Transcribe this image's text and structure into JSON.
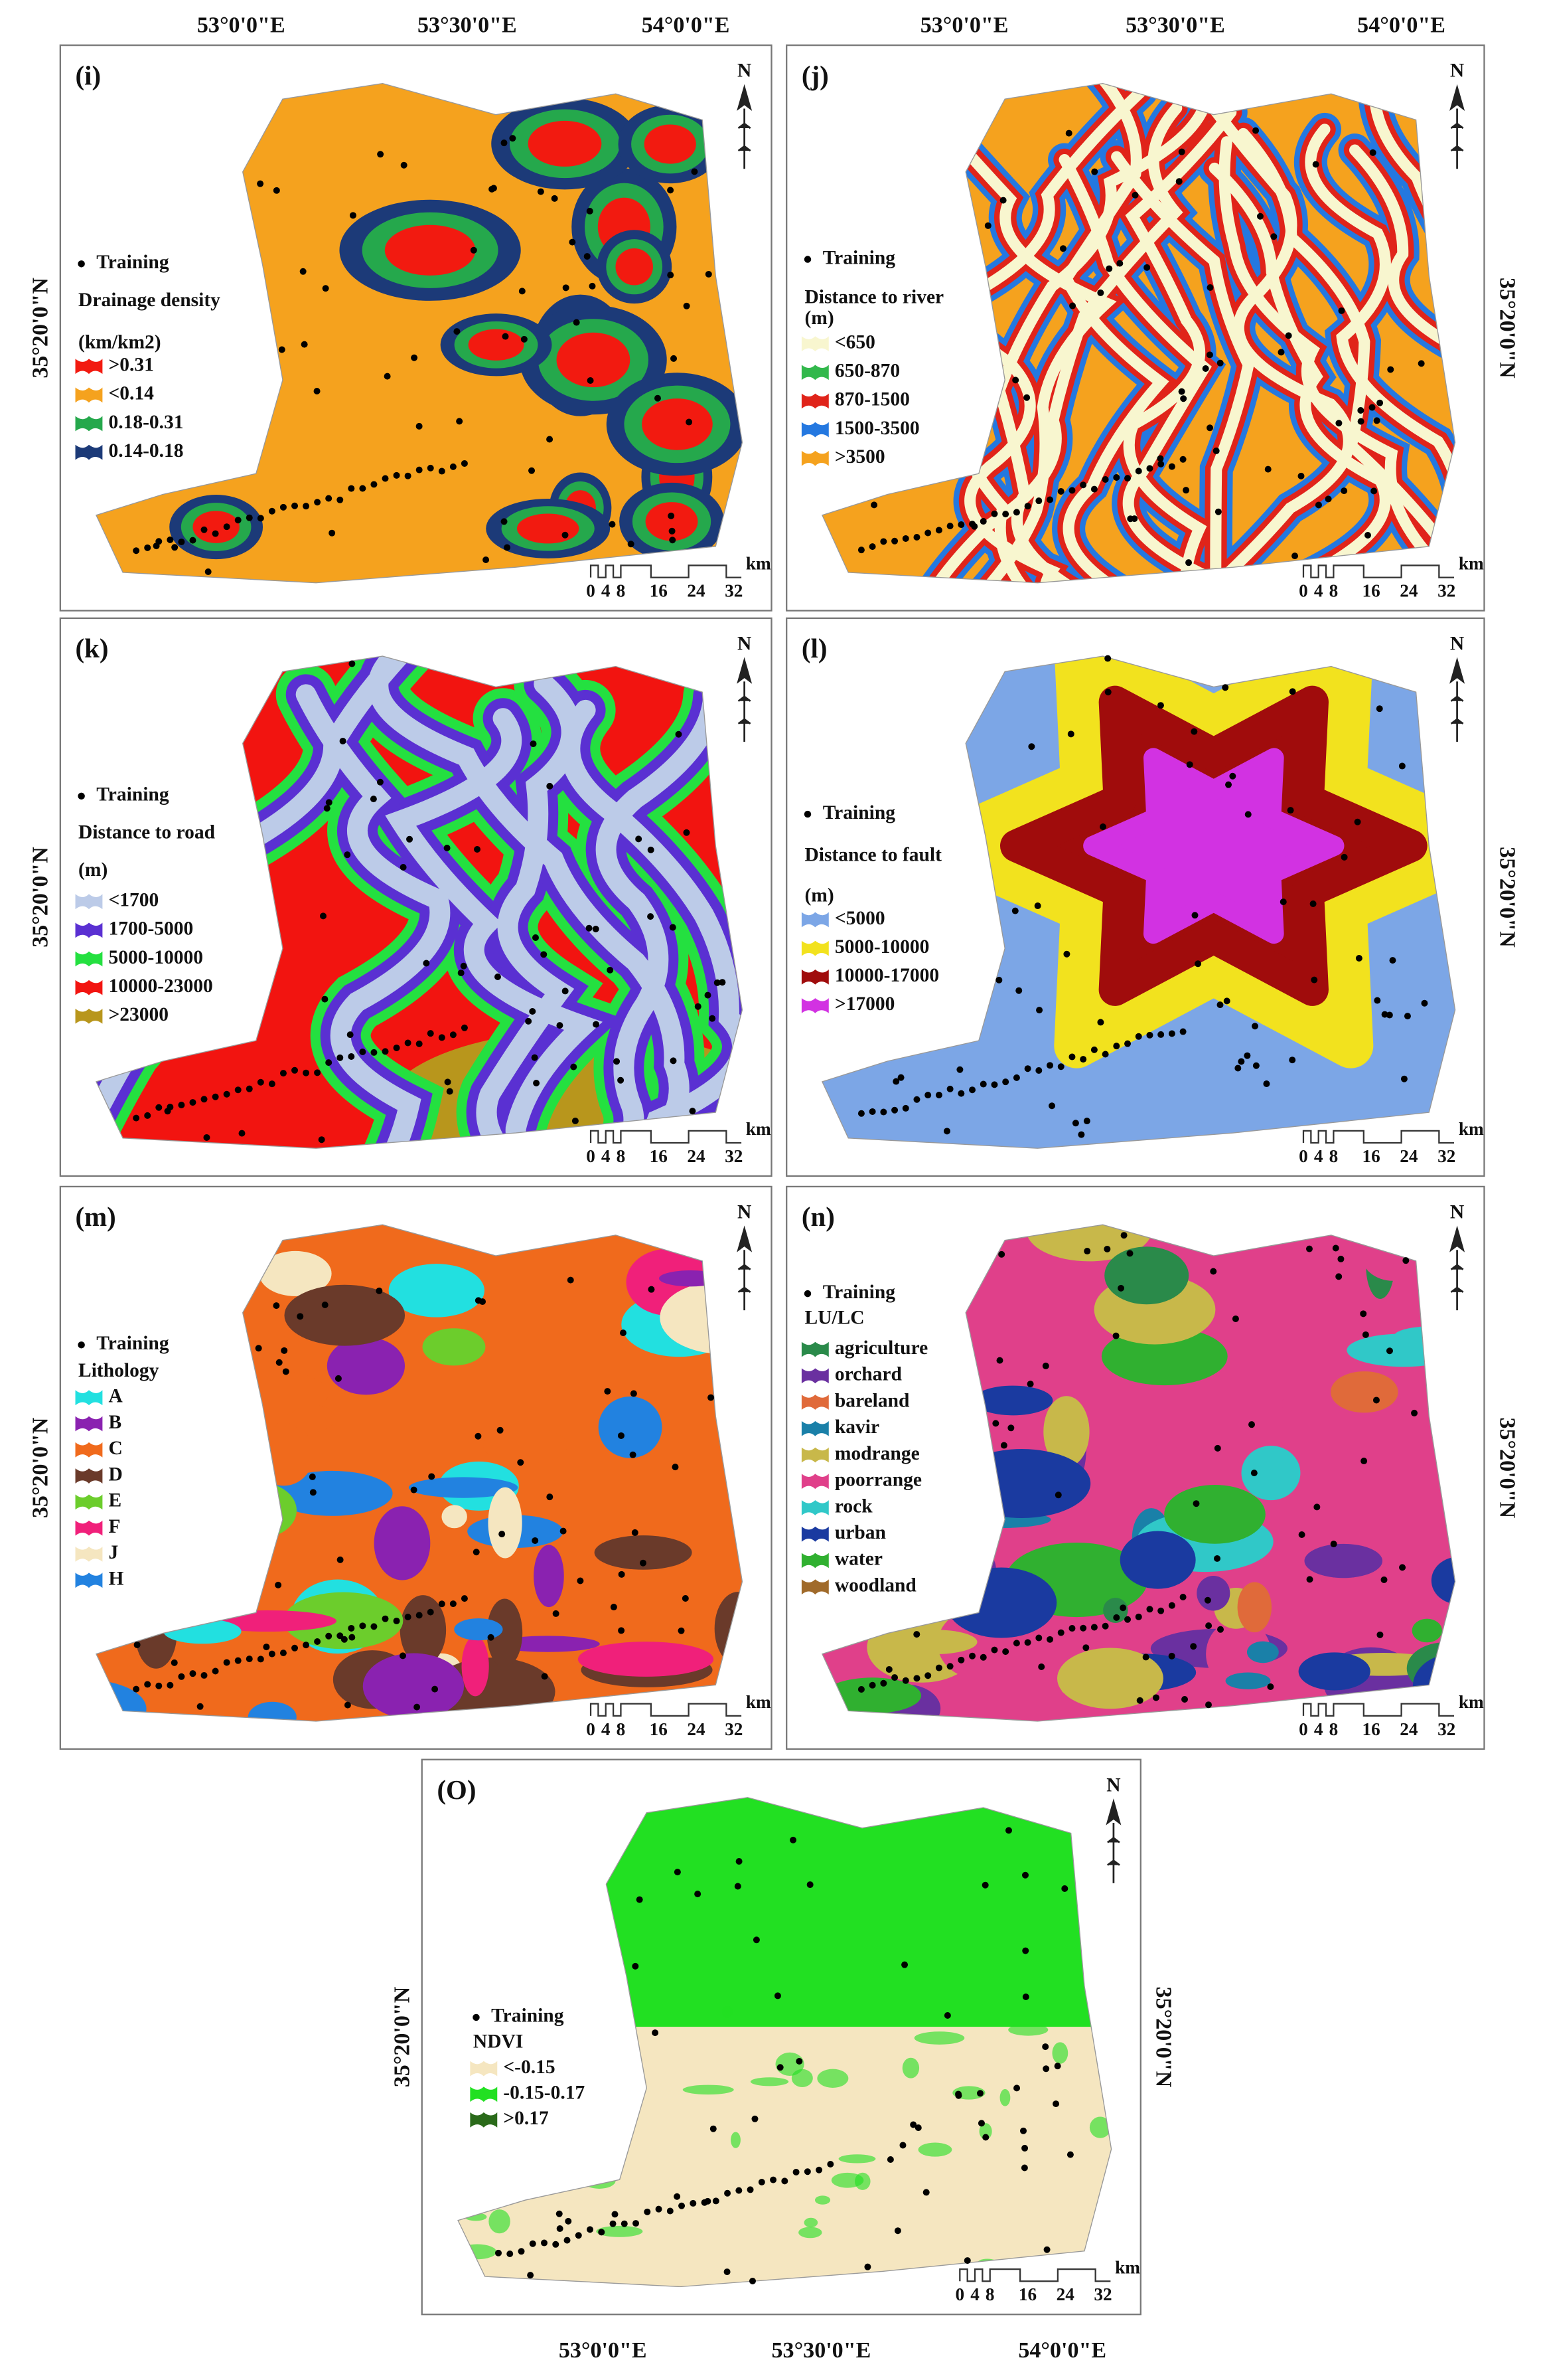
{
  "coordinates": {
    "longitude": [
      "53°0'0\"E",
      "53°30'0\"E",
      "54°0'0\"E"
    ],
    "latitude": "35°20'0\"N"
  },
  "north": "N",
  "scale_bar": {
    "ticks": [
      "0",
      "4",
      "8",
      "16",
      "24",
      "32"
    ],
    "unit": "km"
  },
  "panels": [
    {
      "label": "(i)",
      "training": "Training",
      "legend_title": "Drainage density",
      "unit": "(km/km2)",
      "legend": [
        {
          "label": ">0.31",
          "color": "#f21a10"
        },
        {
          "label": "<0.14",
          "color": "#f5a21e"
        },
        {
          "label": "0.18-0.31",
          "color": "#25a84c"
        },
        {
          "label": "0.14-0.18",
          "color": "#1c3a78"
        }
      ]
    },
    {
      "label": "(j)",
      "training": "Training",
      "legend_title": "Distance to river",
      "unit": "(m)",
      "legend": [
        {
          "label": "<650",
          "color": "#f8f6cf"
        },
        {
          "label": "650-870",
          "color": "#32b84c"
        },
        {
          "label": "870-1500",
          "color": "#e0241a"
        },
        {
          "label": "1500-3500",
          "color": "#2478e0"
        },
        {
          "label": ">3500",
          "color": "#f5a21e"
        }
      ]
    },
    {
      "label": "(k)",
      "training": "Training",
      "legend_title": "Distance to road",
      "unit": "(m)",
      "legend": [
        {
          "label": "<1700",
          "color": "#bccbe8"
        },
        {
          "label": "1700-5000",
          "color": "#5a30d2"
        },
        {
          "label": "5000-10000",
          "color": "#24e040"
        },
        {
          "label": "10000-23000",
          "color": "#f21410"
        },
        {
          "label": ">23000",
          "color": "#b8961c"
        }
      ]
    },
    {
      "label": "(l)",
      "training": "Training",
      "legend_title": "Distance to fault",
      "unit": "(m)",
      "legend": [
        {
          "label": "<5000",
          "color": "#7ca6e6"
        },
        {
          "label": "5000-10000",
          "color": "#f2e21e"
        },
        {
          "label": "10000-17000",
          "color": "#a00c0c"
        },
        {
          "label": ">17000",
          "color": "#d232e2"
        }
      ]
    },
    {
      "label": "(m)",
      "training": "Training",
      "legend_title": "Lithology",
      "legend": [
        {
          "label": "A",
          "color": "#22e0e0"
        },
        {
          "label": "B",
          "color": "#8a22b0"
        },
        {
          "label": "C",
          "color": "#f06a1c"
        },
        {
          "label": "D",
          "color": "#6a3a2a"
        },
        {
          "label": "E",
          "color": "#6ccd2c"
        },
        {
          "label": "F",
          "color": "#f0207a"
        },
        {
          "label": "J",
          "color": "#f5e6c0"
        },
        {
          "label": "H",
          "color": "#2282e0"
        }
      ]
    },
    {
      "label": "(n)",
      "training": "Training",
      "legend_title": "LU/LC",
      "legend": [
        {
          "label": "agriculture",
          "color": "#2a8a4a"
        },
        {
          "label": "orchard",
          "color": "#6a30a0"
        },
        {
          "label": "bareland",
          "color": "#e06a3a"
        },
        {
          "label": "kavir",
          "color": "#1a80a8"
        },
        {
          "label": "modrange",
          "color": "#c8b84a"
        },
        {
          "label": "poorrange",
          "color": "#e0408a"
        },
        {
          "label": "rock",
          "color": "#30c8c8"
        },
        {
          "label": "urban",
          "color": "#1a3aa0"
        },
        {
          "label": "water",
          "color": "#30b030"
        },
        {
          "label": "woodland",
          "color": "#a06a2a"
        }
      ]
    },
    {
      "label": "(O)",
      "training": "Training",
      "legend_title": "NDVI",
      "legend": [
        {
          "label": "<-0.15",
          "color": "#f5e6c0"
        },
        {
          "label": "-0.15-0.17",
          "color": "#22e022"
        },
        {
          "label": ">0.17",
          "color": "#2a6a1a"
        }
      ]
    }
  ]
}
